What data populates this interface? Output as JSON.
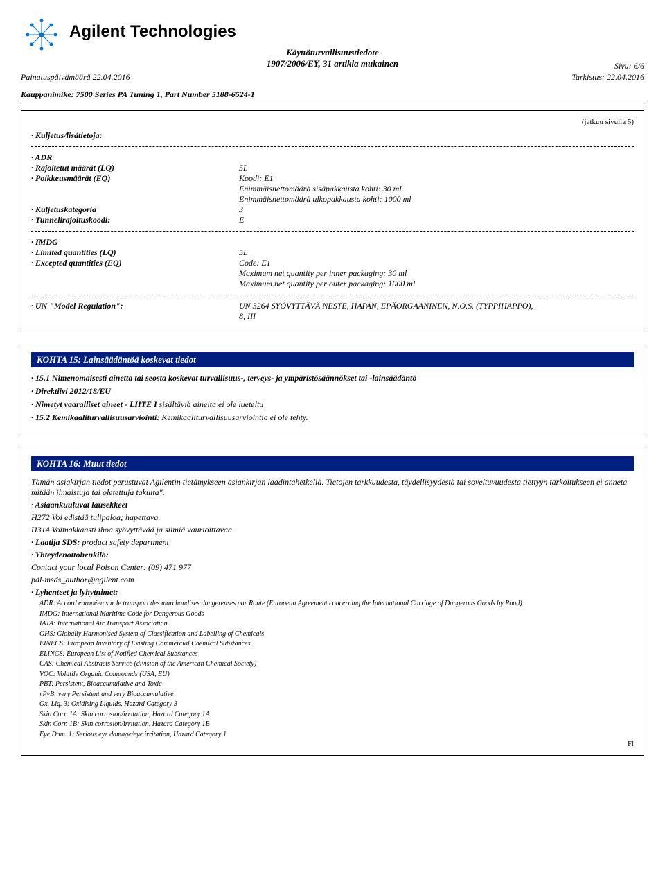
{
  "brand": "Agilent Technologies",
  "doc_title1": "Käyttöturvallisuustiedote",
  "doc_title2": "1907/2006/EY, 31 artikla mukainen",
  "page_label": "Sivu: 6/6",
  "print_date_label": "Painatuspäivämäärä 22.04.2016",
  "revision_label": "Tarkistus: 22.04.2016",
  "trade_name": "Kauppanimike: 7500 Series PA Tuning 1, Part Number 5188-6524-1",
  "cont_from": "(jatkuu sivulla 5)",
  "transport": {
    "header": "· Kuljetus/lisätietoja:",
    "adr": {
      "title": "· ADR",
      "lq_label": "· Rajoitetut määrät (LQ)",
      "lq_value": "5L",
      "eq_label": "· Poikkeusmäärät (EQ)",
      "eq_value1": "Koodi: E1",
      "eq_value2": "Enimmäisnettomäärä sisäpakkausta kohti: 30 ml",
      "eq_value3": "Enimmäisnettomäärä ulkopakkausta kohti: 1000 ml",
      "cat_label": "· Kuljetuskategoria",
      "cat_value": "3",
      "tunnel_label": "· Tunnelirajoituskoodi:",
      "tunnel_value": "E"
    },
    "imdg": {
      "title": "· IMDG",
      "lq_label": "· Limited quantities (LQ)",
      "lq_value": "5L",
      "eq_label": "· Excepted quantities (EQ)",
      "eq_value1": "Code: E1",
      "eq_value2": "Maximum net quantity per inner packaging: 30 ml",
      "eq_value3": "Maximum net quantity per outer packaging: 1000 ml"
    },
    "un": {
      "label": "· UN \"Model Regulation\":",
      "value1": "UN 3264 SYÖVYTTÄVÄ NESTE, HAPAN, EPÄORGAANINEN, N.O.S. (TYPPIHAPPO),",
      "value2": "8, III"
    }
  },
  "section15": {
    "title": "KOHTA 15: Lainsäädäntöä koskevat tiedot",
    "line1": "· 15.1 Nimenomaisesti ainetta tai seosta koskevat turvallisuus-, terveys- ja ympäristösäännökset tai -lainsäädäntö",
    "line2": "· Direktiivi 2012/18/EU",
    "line3_lead": "· Nimetyt vaaralliset aineet - LIITE I",
    "line3_rest": " sisältäviä aineita ei ole lueteltu",
    "line4_lead": "· 15.2 Kemikaaliturvallisuusarviointi:",
    "line4_rest": " Kemikaaliturvallisuusarviointia ei ole tehty."
  },
  "section16": {
    "title": "KOHTA 16: Muut tiedot",
    "para1": "Tämän asiakirjan tiedot perustuvat Agilentin tietämykseen asiankirjan laadintahetkellä. Tietojen tarkkuudesta, täydellisyydestä tai soveltuvuudesta tiettyyn tarkoitukseen ei anneta mitään ilmaistuja tai oletettuja takuita\".",
    "phrases_label": "· Asiaankuuluvat lausekkeet",
    "h272": "H272 Voi edistää tulipaloa; hapettava.",
    "h314": "H314 Voimakkaasti ihoa syövyttävää ja silmiä vaurioittavaa.",
    "author_label": "· Laatija SDS:",
    "author_value": " product safety department",
    "contact_label": "· Yhteydenottohenkilö:",
    "contact_line1": "Contact your local Poison Center:  (09) 471 977",
    "contact_line2": "pdl-msds_author@agilent.com",
    "abbrev_label": "· Lyhenteet ja lyhytnimet:",
    "abbrevs": [
      "ADR: Accord européen sur le transport des marchandises dangereuses par Route (European Agreement concerning the International Carriage of Dangerous Goods by Road)",
      "IMDG: International Maritime Code for Dangerous Goods",
      "IATA: International Air Transport Association",
      "GHS: Globally Harmonised System of Classification and Labelling of Chemicals",
      "EINECS: European Inventory of Existing Commercial Chemical Substances",
      "ELINCS: European List of Notified Chemical Substances",
      "CAS: Chemical Abstracts Service (division of the American Chemical Society)",
      "VOC: Volatile Organic Compounds (USA, EU)",
      "PBT: Persistent, Bioaccumulative and Toxic",
      "vPvB: very Persistent and very Bioaccumulative",
      "Ox. Liq. 3: Oxidising Liquids, Hazard Category 3",
      "Skin Corr. 1A: Skin corrosion/irritation, Hazard Category 1A",
      "Skin Corr. 1B: Skin corrosion/irritation, Hazard Category 1B",
      "Eye Dam. 1: Serious eye damage/eye irritation, Hazard Category 1"
    ],
    "fi": "FI"
  },
  "colors": {
    "blue": "#001f7f"
  }
}
